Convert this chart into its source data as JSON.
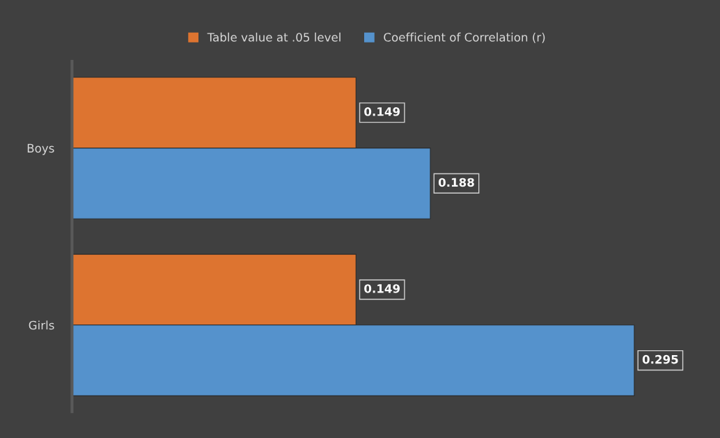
{
  "chart_data": {
    "type": "bar",
    "orientation": "horizontal",
    "categories": [
      "Boys",
      "Girls"
    ],
    "series": [
      {
        "name": "Table value at .05 level",
        "color": "#dd7430",
        "values": [
          0.149,
          0.149
        ]
      },
      {
        "name": "Coefficient of Correlation (r)",
        "color": "#5592cc",
        "values": [
          0.188,
          0.295
        ]
      }
    ],
    "data_labels": true,
    "legend": "top",
    "tick_labels": "y"
  }
}
